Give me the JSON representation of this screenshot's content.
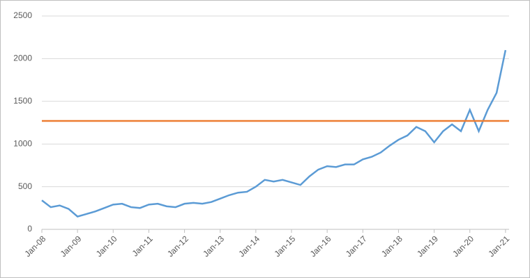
{
  "chart_data": {
    "type": "line",
    "x": [
      2008.0,
      2008.25,
      2008.5,
      2008.75,
      2009.0,
      2009.25,
      2009.5,
      2009.75,
      2010.0,
      2010.25,
      2010.5,
      2010.75,
      2011.0,
      2011.25,
      2011.5,
      2011.75,
      2012.0,
      2012.25,
      2012.5,
      2012.75,
      2013.0,
      2013.25,
      2013.5,
      2013.75,
      2014.0,
      2014.25,
      2014.5,
      2014.75,
      2015.0,
      2015.25,
      2015.5,
      2015.75,
      2016.0,
      2016.25,
      2016.5,
      2016.75,
      2017.0,
      2017.25,
      2017.5,
      2017.75,
      2018.0,
      2018.25,
      2018.5,
      2018.75,
      2019.0,
      2019.25,
      2019.5,
      2019.75,
      2020.0,
      2020.25,
      2020.5,
      2020.75,
      2021.0
    ],
    "series": [
      {
        "color": "#5b9bd5",
        "values": [
          340,
          260,
          280,
          240,
          150,
          180,
          210,
          250,
          290,
          300,
          260,
          250,
          290,
          300,
          270,
          260,
          300,
          310,
          300,
          320,
          360,
          400,
          430,
          440,
          500,
          580,
          560,
          580,
          550,
          520,
          620,
          700,
          740,
          730,
          760,
          760,
          820,
          850,
          900,
          980,
          1050,
          1100,
          1200,
          1150,
          1020,
          1150,
          1230,
          1150,
          1400,
          1150,
          1400,
          1600,
          2100
        ]
      }
    ],
    "reference_line": {
      "value": 1270,
      "color": "#ed7d31"
    },
    "xlim": [
      2008,
      2021.1
    ],
    "xticks": [
      {
        "value": 2008,
        "label": "Jan-08"
      },
      {
        "value": 2009,
        "label": "Jan-09"
      },
      {
        "value": 2010,
        "label": "Jan-10"
      },
      {
        "value": 2011,
        "label": "Jan-11"
      },
      {
        "value": 2012,
        "label": "Jan-12"
      },
      {
        "value": 2013,
        "label": "Jan-13"
      },
      {
        "value": 2014,
        "label": "Jan-14"
      },
      {
        "value": 2015,
        "label": "Jan-15"
      },
      {
        "value": 2016,
        "label": "Jan-16"
      },
      {
        "value": 2017,
        "label": "Jan-17"
      },
      {
        "value": 2018,
        "label": "Jan-18"
      },
      {
        "value": 2019,
        "label": "Jan-19"
      },
      {
        "value": 2020,
        "label": "Jan-20"
      },
      {
        "value": 2021,
        "label": "Jan-21"
      }
    ],
    "ylim": [
      0,
      2500
    ],
    "yticks": [
      0,
      500,
      1000,
      1500,
      2000,
      2500
    ],
    "grid": true
  }
}
